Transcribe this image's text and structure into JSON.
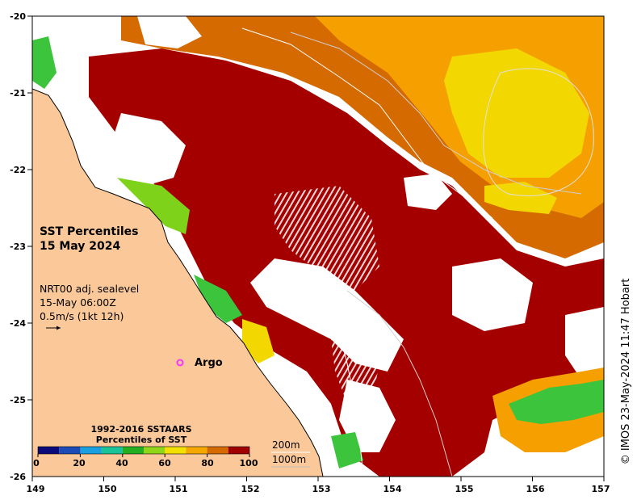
{
  "map": {
    "title_line1": "SST Percentiles",
    "title_line2": "15 May 2024",
    "info_line1": "NRT00 adj. sealevel",
    "info_line2": "15-May 06:00Z",
    "info_line3": "0.5m/s (1kt 12h)",
    "argo_label": "Argo",
    "credit": "© IMOS 23-May-2024 11:47 Hobart",
    "lon_ticks": [
      "149",
      "150",
      "151",
      "152",
      "153",
      "154",
      "155",
      "156",
      "157"
    ],
    "lat_ticks": [
      "-20",
      "-21",
      "-22",
      "-23",
      "-24",
      "-25",
      "-26"
    ],
    "legend": {
      "title_line1": "1992-2016 SSTAARS",
      "title_line2": "Percentiles of SST",
      "ticks": [
        "0",
        "20",
        "40",
        "60",
        "80",
        "100"
      ],
      "colors": [
        "#0a0a7a",
        "#1c4bb8",
        "#1aa0e0",
        "#19c49a",
        "#22b022",
        "#8fd61a",
        "#f2e000",
        "#f5a800",
        "#d46a00",
        "#a00000"
      ]
    },
    "contours": {
      "label_200": "200m",
      "label_1000": "1000m"
    },
    "colors": {
      "land": "#fbc999",
      "argo_marker": "#ff33ff",
      "dark_red": "#a50000",
      "orange": "#d46a00",
      "light_orange": "#f5a000",
      "yellow": "#f2d800",
      "green": "#3cc43c"
    }
  }
}
